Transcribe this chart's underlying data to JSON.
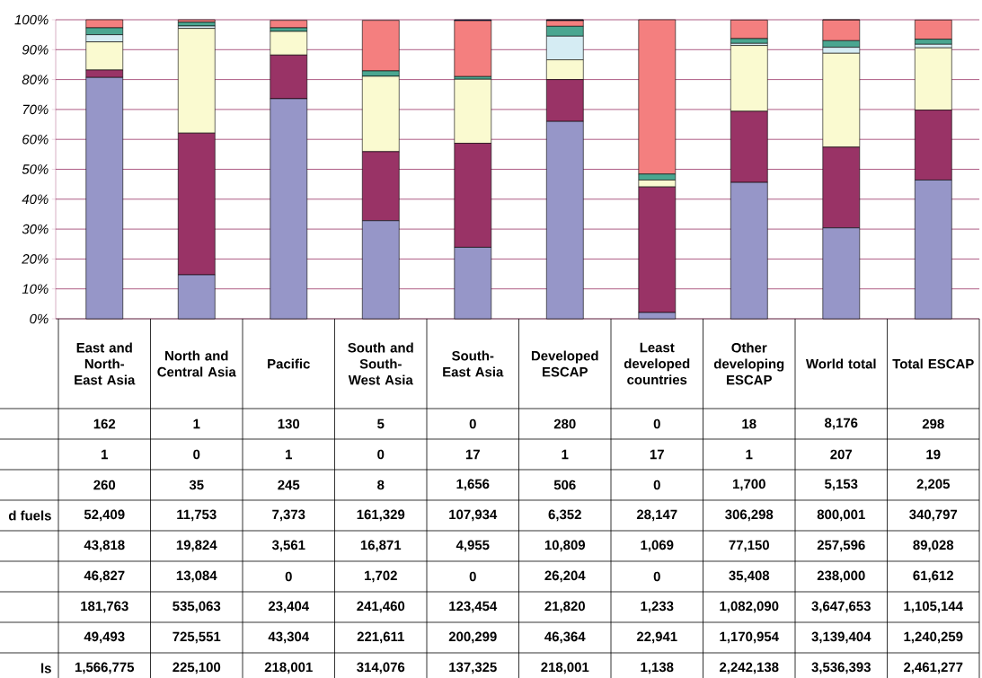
{
  "chart_data": {
    "type": "bar",
    "stacked": true,
    "grid": "y",
    "categories": [
      "East and North-East Asia",
      "North and Central Asia",
      "Pacific",
      "South and South-West Asia",
      "South-East Asia",
      "Developed ESCAP",
      "Least developed countries",
      "Other developing ESCAP",
      "World total",
      "Total ESCAP"
    ],
    "ylim": [
      0,
      100
    ],
    "yticks": [
      {
        "value": 0,
        "label": "0%"
      },
      {
        "value": 10,
        "label": "10%"
      },
      {
        "value": 20,
        "label": "20%"
      },
      {
        "value": 30,
        "label": "30%"
      },
      {
        "value": 40,
        "label": "40%"
      },
      {
        "value": 50,
        "label": "50%"
      },
      {
        "value": 60,
        "label": "60%"
      },
      {
        "value": 70,
        "label": "70%"
      },
      {
        "value": 80,
        "label": "80%"
      },
      {
        "value": 90,
        "label": "90%"
      },
      {
        "value": 100,
        "label": "100%"
      }
    ],
    "series": [
      {
        "color": "#9696c8",
        "values": [
          80.7,
          14.7,
          73.6,
          32.8,
          23.9,
          66.0,
          2.1,
          45.6,
          30.4,
          46.4
        ]
      },
      {
        "color": "#993366",
        "values": [
          2.5,
          47.4,
          14.6,
          23.1,
          34.8,
          14.0,
          42.0,
          23.8,
          27.0,
          23.4
        ]
      },
      {
        "color": "#fafad0",
        "values": [
          9.4,
          35.0,
          7.9,
          25.2,
          21.4,
          6.6,
          2.3,
          22.0,
          31.4,
          20.8
        ]
      },
      {
        "color": "#d5ecf3",
        "values": [
          2.4,
          0.8,
          0.0,
          null,
          0.0,
          7.9,
          0.0,
          0.7,
          2.0,
          1.2
        ]
      },
      {
        "color": "#4aa690",
        "values": [
          2.3,
          1.3,
          1.2,
          1.8,
          0.9,
          3.3,
          2.0,
          1.6,
          2.2,
          1.7
        ]
      },
      {
        "color": "#f47f7f",
        "values": [
          2.7,
          0.8,
          2.5,
          16.9,
          18.7,
          1.9,
          51.6,
          6.2,
          6.9,
          6.4
        ]
      },
      {
        "color": "#1f4e99",
        "values": [
          0.0,
          0.0,
          null,
          0.0,
          0.3,
          0.2,
          0.0,
          0.0,
          0.0,
          0.0
        ]
      },
      {
        "color": "#808080",
        "values": [
          0.0,
          0.0,
          0.0,
          0.0,
          0.0,
          0.0,
          0.0,
          0.0,
          0.0,
          0.0
        ]
      },
      {
        "color": "#000080",
        "values": [
          0.0,
          0.0,
          0.0,
          0.0,
          0.0,
          0.1,
          0.0,
          0.0,
          0.1,
          0.0
        ]
      }
    ],
    "annotations": [
      "d fuels",
      "ls",
      "162",
      "1",
      "130",
      "5",
      "0",
      "280",
      "0",
      "18",
      "8,176",
      "298",
      "1",
      "0",
      "1",
      "0",
      "17",
      "1",
      "17",
      "1",
      "207",
      "19",
      "260",
      "35",
      "245",
      "8",
      "1,656",
      "506",
      "0",
      "1,700",
      "5,153",
      "2,205",
      "52,409",
      "11,753",
      "7,373",
      "161,329",
      "107,934",
      "6,352",
      "28,147",
      "306,298",
      "800,001",
      "340,797",
      "43,818",
      "19,824",
      "3,561",
      "16,871",
      "4,955",
      "10,809",
      "1,069",
      "77,150",
      "257,596",
      "89,028",
      "46,827",
      "13,084",
      "0",
      "1,702",
      "0",
      "26,204",
      "0",
      "35,408",
      "238,000",
      "61,612",
      "181,763",
      "535,063",
      "23,404",
      "241,460",
      "123,454",
      "21,820",
      "1,233",
      "1,082,090",
      "3,647,653",
      "1,105,144",
      "49,493",
      "725,551",
      "43,304",
      "221,611",
      "200,299",
      "46,364",
      "22,941",
      "1,170,954",
      "3,139,404",
      "1,240,259",
      "1,566,775",
      "225,100",
      "218,001",
      "314,076",
      "137,325",
      "218,001",
      "1,138",
      "2,242,138",
      "3,536,393",
      "2,461,277"
    ]
  }
}
